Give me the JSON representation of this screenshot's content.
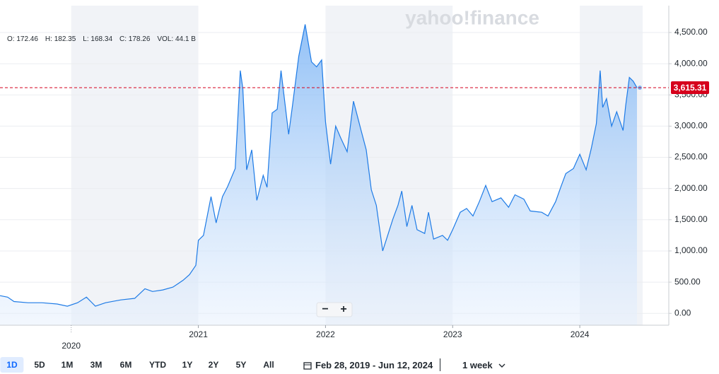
{
  "chart_data": {
    "type": "area",
    "color": "#1e7be6",
    "x": [
      2019.44,
      2019.5,
      2019.55,
      2019.66,
      2019.77,
      2019.89,
      2019.97,
      2020.05,
      2020.12,
      2020.19,
      2020.27,
      2020.39,
      2020.5,
      2020.58,
      2020.64,
      2020.72,
      2020.8,
      2020.88,
      2020.93,
      2020.98,
      2021.0,
      2021.04,
      2021.1,
      2021.14,
      2021.19,
      2021.23,
      2021.29,
      2021.33,
      2021.35,
      2021.38,
      2021.42,
      2021.46,
      2021.51,
      2021.54,
      2021.58,
      2021.62,
      2021.65,
      2021.71,
      2021.74,
      2021.79,
      2021.84,
      2021.89,
      2021.93,
      2021.97,
      2022.0,
      2022.04,
      2022.08,
      2022.12,
      2022.17,
      2022.22,
      2022.28,
      2022.32,
      2022.36,
      2022.4,
      2022.45,
      2022.48,
      2022.53,
      2022.57,
      2022.6,
      2022.64,
      2022.68,
      2022.72,
      2022.78,
      2022.81,
      2022.85,
      2022.92,
      2022.96,
      2023.0,
      2023.06,
      2023.11,
      2023.16,
      2023.21,
      2023.26,
      2023.31,
      2023.38,
      2023.44,
      2023.49,
      2023.56,
      2023.61,
      2023.7,
      2023.75,
      2023.81,
      2023.85,
      2023.89,
      2023.95,
      2024.0,
      2024.05,
      2024.09,
      2024.13,
      2024.16,
      2024.18,
      2024.21,
      2024.25,
      2024.29,
      2024.34,
      2024.36,
      2024.39,
      2024.42,
      2024.45
    ],
    "values": [
      283,
      260,
      190,
      170,
      170,
      150,
      115,
      170,
      260,
      115,
      170,
      215,
      240,
      395,
      350,
      375,
      420,
      530,
      620,
      770,
      1170,
      1250,
      1870,
      1450,
      1870,
      2030,
      2320,
      3890,
      3600,
      2300,
      2620,
      1810,
      2210,
      2020,
      3210,
      3270,
      3890,
      2870,
      3330,
      4120,
      4630,
      4030,
      3950,
      4060,
      3070,
      2390,
      3000,
      2810,
      2590,
      3400,
      2930,
      2620,
      1980,
      1730,
      1000,
      1190,
      1510,
      1730,
      1960,
      1390,
      1730,
      1340,
      1280,
      1620,
      1190,
      1250,
      1170,
      1340,
      1620,
      1680,
      1560,
      1790,
      2050,
      1790,
      1850,
      1700,
      1900,
      1830,
      1640,
      1620,
      1560,
      1790,
      2020,
      2240,
      2320,
      2550,
      2300,
      2640,
      3040,
      3890,
      3300,
      3440,
      3000,
      3230,
      2930,
      3320,
      3780,
      3720,
      3615.31
    ],
    "xlim": [
      2019.44,
      2024.7
    ],
    "xticks": [
      2020,
      2021,
      2022,
      2023,
      2024
    ],
    "ylim": [
      -190,
      4930
    ],
    "yticks": [
      {
        "value": 0,
        "label": "0.00"
      },
      {
        "value": 500,
        "label": "500.00"
      },
      {
        "value": 1000,
        "label": "1,000.00"
      },
      {
        "value": 1500,
        "label": "1,500.00"
      },
      {
        "value": 2000,
        "label": "2,000.00"
      },
      {
        "value": 2500,
        "label": "2,500.00"
      },
      {
        "value": 3000,
        "label": "3,000.00"
      },
      {
        "value": 3500,
        "label": "3,500.00"
      },
      {
        "value": 4000,
        "label": "4,000.00"
      },
      {
        "value": 4500,
        "label": "4,500.00"
      }
    ],
    "grid": true,
    "last_price": {
      "value": 3615.31,
      "label": "3,615.31",
      "color": "#d6001c"
    }
  },
  "ohlc": [
    "O: 172.46",
    "H: 182.35",
    "L: 168.34",
    "C: 178.26",
    "VOL: 44.1 B"
  ],
  "watermark": "yahoo!finance",
  "zoom": [
    "−",
    "+"
  ],
  "ranges": [
    "1D",
    "5D",
    "1M",
    "3M",
    "6M",
    "YTD",
    "1Y",
    "2Y",
    "5Y",
    "All"
  ],
  "date_range": "Feb 28, 2019 - Jun 12, 2024",
  "interval": "1 week"
}
